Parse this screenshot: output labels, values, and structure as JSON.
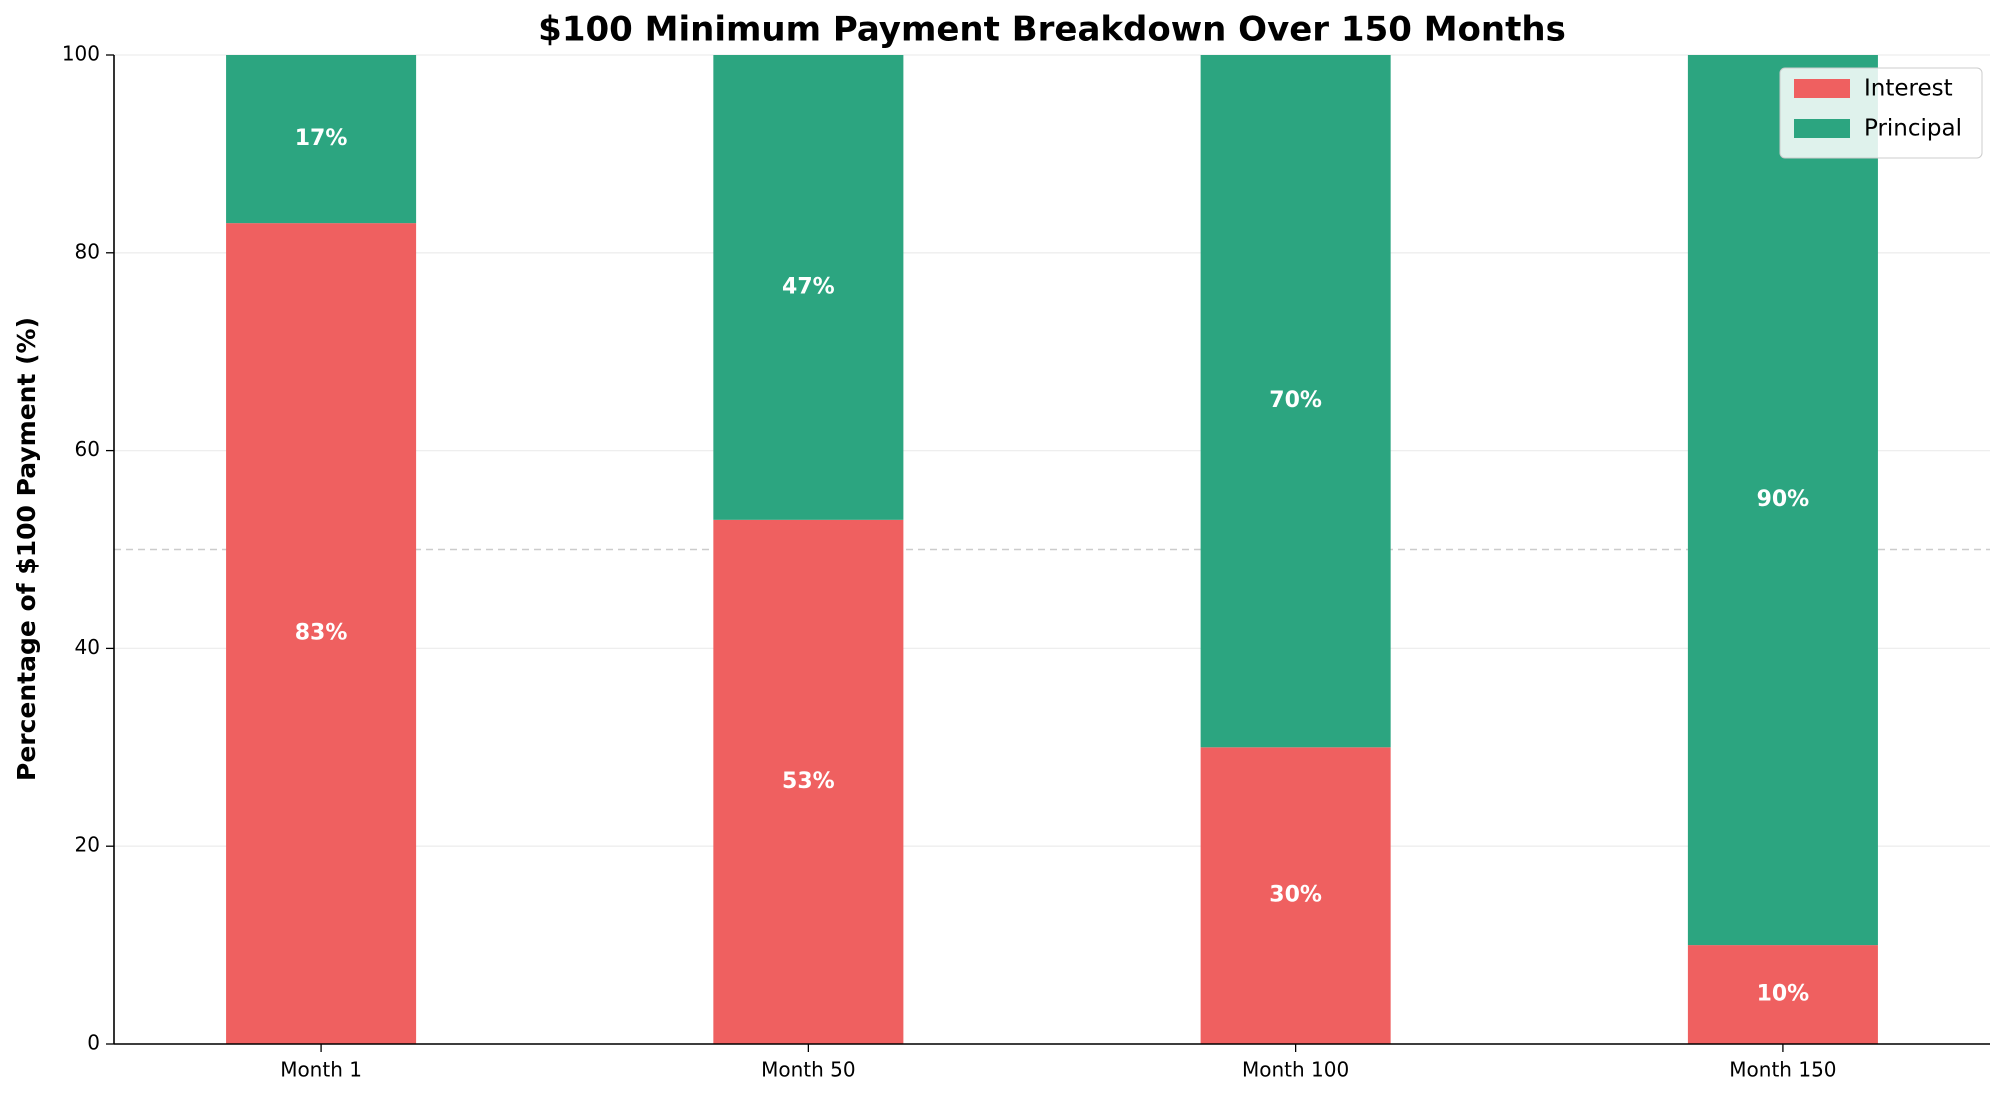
{
  "chart_data": {
    "type": "stacked_bar",
    "title": "$100 Minimum Payment Breakdown Over 150 Months",
    "y_label": "Percentage of $100 Payment (%)",
    "categories": [
      "Month 1",
      "Month 50",
      "Month 100",
      "Month 150"
    ],
    "series": [
      {
        "name": "Interest",
        "color": "#ef6060",
        "values": [
          83,
          53,
          30,
          10
        ],
        "value_labels": [
          "83%",
          "53%",
          "30%",
          "10%"
        ]
      },
      {
        "name": "Principal",
        "color": "#2ca580",
        "values": [
          17,
          47,
          70,
          90
        ],
        "value_labels": [
          "17%",
          "47%",
          "70%",
          "90%"
        ]
      }
    ],
    "ylim": [
      0,
      100
    ],
    "yticks": [
      0,
      20,
      40,
      60,
      80,
      100
    ],
    "grid": true,
    "reference_line": 50,
    "legend": "upper-right"
  }
}
